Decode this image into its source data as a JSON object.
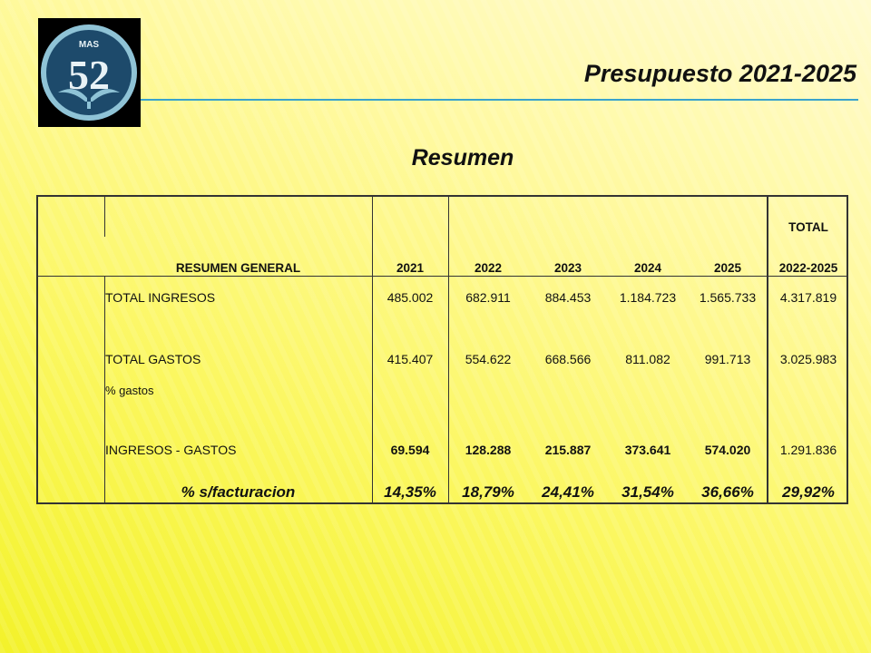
{
  "header": {
    "title": "Presupuesto 2021-2025",
    "subtitle": "Resumen",
    "logo_text": "MAS 52"
  },
  "colors": {
    "accent_line": "#3aa3cc",
    "logo_bg": "#1d4a6b",
    "logo_ring": "#8fc3d6"
  },
  "table": {
    "header_label": "RESUMEN GENERAL",
    "years": [
      "2021",
      "2022",
      "2023",
      "2024",
      "2025"
    ],
    "total_label_1": "TOTAL",
    "total_label_2": "2022-2025",
    "rows": [
      {
        "label": "TOTAL INGRESOS",
        "values": [
          "485.002",
          "682.911",
          "884.453",
          "1.184.723",
          "1.565.733",
          "4.317.819"
        ]
      },
      {
        "label": "TOTAL GASTOS",
        "values": [
          "415.407",
          "554.622",
          "668.566",
          "811.082",
          "991.713",
          "3.025.983"
        ]
      },
      {
        "label": "% gastos",
        "values": [
          "",
          "",
          "",
          "",
          "",
          ""
        ]
      },
      {
        "label": "INGRESOS - GASTOS",
        "values": [
          "69.594",
          "128.288",
          "215.887",
          "373.641",
          "574.020",
          "1.291.836"
        ]
      },
      {
        "label": "% s/facturacion",
        "values": [
          "14,35%",
          "18,79%",
          "24,41%",
          "31,54%",
          "36,66%",
          "29,92%"
        ]
      }
    ]
  }
}
